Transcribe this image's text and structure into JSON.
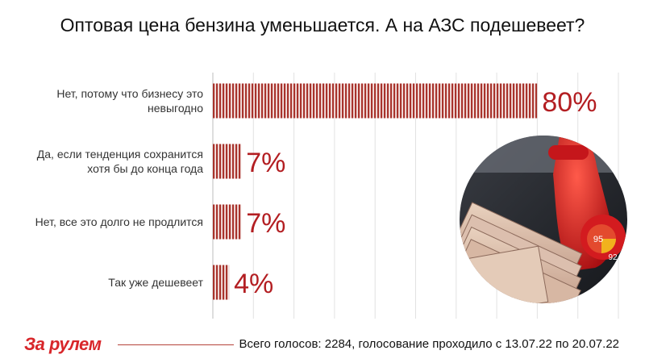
{
  "title": "Оптовая цена бензина уменьшается. А на АЗС подешевеет?",
  "brand": {
    "logo_text": "За рулем",
    "accent_color": "#d8262a"
  },
  "footer": {
    "note": "Всего голосов: 2284, голосование проходило с 13.07.22 по 20.07.22"
  },
  "chart_data": {
    "type": "bar",
    "orientation": "horizontal",
    "title": "Оптовая цена бензина уменьшается. А на АЗС подешевеет?",
    "categories": [
      [
        "Нет, потому что бизнесу это",
        "невыгодно"
      ],
      [
        "Да, если тенденция сохранится",
        "хотя бы до конца года"
      ],
      [
        "Нет, все это долго не продлится"
      ],
      [
        "Так уже дешевеет"
      ]
    ],
    "values": [
      80,
      7,
      7,
      4
    ],
    "value_labels": [
      "80%",
      "7%",
      "7%",
      "4%"
    ],
    "xlim": [
      0,
      100
    ],
    "bar_color": "#a8332c",
    "label_color": "#b31e22",
    "grid": true
  },
  "photo": {
    "description_icon": "fuel-nozzle-rubles-photo",
    "nozzle_labels": [
      "95",
      "92"
    ]
  }
}
